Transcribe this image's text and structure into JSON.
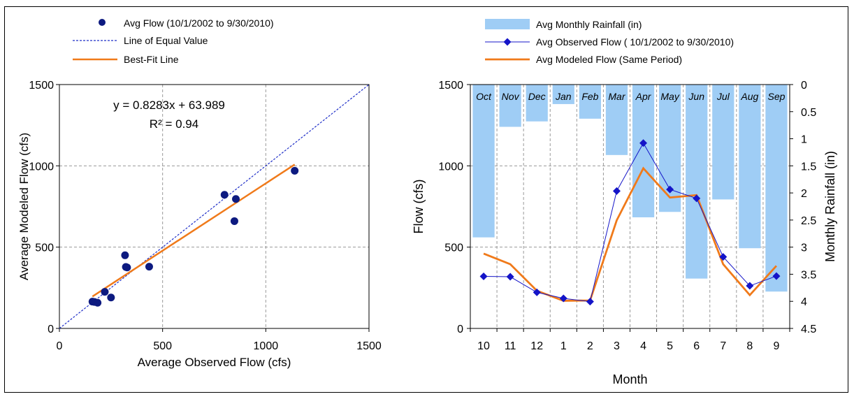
{
  "colors": {
    "avg_flow_dots": "#0d1a80",
    "equal_line": "#1f2fc8",
    "best_fit": "#f07a1a",
    "rainfall_bars": "#9fcdf5",
    "observed_line": "#1414c8",
    "modeled_line": "#f07a1a",
    "month_labels": "#2020e0",
    "grid": "#999999"
  },
  "chart_data": [
    {
      "type": "scatter",
      "xlabel": "Average Observed Flow (cfs)",
      "ylabel": "Average Modeled Flow (cfs)",
      "xlim": [
        0,
        1500
      ],
      "ylim": [
        0,
        1500
      ],
      "xticks": [
        "0",
        "500",
        "1000",
        "1500"
      ],
      "yticks": [
        "0",
        "500",
        "1000",
        "1500"
      ],
      "grid": true,
      "legend_position": "top",
      "equation": "y = 0.8283x + 63.989",
      "r_squared": "R² = 0.94",
      "series": [
        {
          "name": "Avg Flow (10/1/2002 to 9/30/2010)",
          "marker": "circle",
          "points": [
            [
              160,
              165
            ],
            [
              170,
              163
            ],
            [
              185,
              158
            ],
            [
              220,
              225
            ],
            [
              250,
              190
            ],
            [
              318,
              450
            ],
            [
              322,
              378
            ],
            [
              328,
              375
            ],
            [
              435,
              380
            ],
            [
              800,
              822
            ],
            [
              848,
              660
            ],
            [
              855,
              796
            ],
            [
              1140,
              970
            ]
          ]
        },
        {
          "name": "Line of Equal Value",
          "style": "dashed",
          "line": [
            [
              0,
              0
            ],
            [
              1500,
              1500
            ]
          ]
        },
        {
          "name": "Best-Fit Line",
          "style": "solid",
          "slope": 0.8283,
          "intercept": 63.989,
          "x_range": [
            160,
            1140
          ]
        }
      ]
    },
    {
      "type": "bar+line",
      "xlabel": "Month",
      "ylabel": "Flow (cfs)",
      "y2label": "Monthly Rainfall (in)",
      "ylim": [
        0,
        1500
      ],
      "y2lim": [
        0,
        4.5
      ],
      "y2_inverted": true,
      "yticks": [
        "0",
        "500",
        "1000",
        "1500"
      ],
      "y2ticks": [
        "0",
        "0.5",
        "1",
        "1.5",
        "2",
        "2.5",
        "3",
        "3.5",
        "4",
        "4.5"
      ],
      "categories": [
        "10",
        "11",
        "12",
        "1",
        "2",
        "3",
        "4",
        "5",
        "6",
        "7",
        "8",
        "9"
      ],
      "month_names": [
        "Oct",
        "Nov",
        "Dec",
        "Jan",
        "Feb",
        "Mar",
        "Apr",
        "May",
        "Jun",
        "Jul",
        "Aug",
        "Sep"
      ],
      "grid": true,
      "legend_position": "top",
      "series": [
        {
          "name": "Avg Monthly Rainfall (in)",
          "type": "bar",
          "axis": "y2",
          "values": [
            2.82,
            0.78,
            0.68,
            0.36,
            0.63,
            1.3,
            2.45,
            2.35,
            3.58,
            2.12,
            3.02,
            3.82
          ]
        },
        {
          "name": "Avg Observed Flow ( 10/1/2002 to 9/30/2010)",
          "type": "line",
          "marker": "diamond",
          "axis": "y",
          "values": [
            320,
            318,
            222,
            185,
            165,
            845,
            1140,
            855,
            800,
            440,
            262,
            322
          ]
        },
        {
          "name": "Avg Modeled Flow (Same Period)",
          "type": "line",
          "marker": "none",
          "axis": "y",
          "values": [
            460,
            395,
            232,
            170,
            172,
            665,
            985,
            805,
            820,
            395,
            205,
            385
          ]
        }
      ]
    }
  ]
}
